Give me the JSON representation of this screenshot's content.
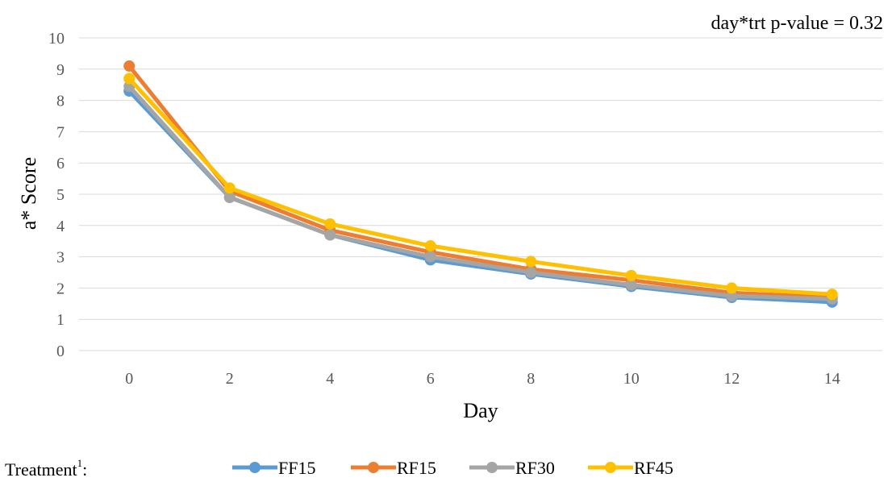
{
  "chart_data": {
    "type": "line",
    "title": "",
    "annotation": "day*trt p-value = 0.32",
    "xlabel": "Day",
    "ylabel": "a* Score",
    "x": [
      0,
      2,
      4,
      6,
      8,
      10,
      12,
      14
    ],
    "ylim": [
      0,
      10
    ],
    "yticks": [
      0,
      1,
      2,
      3,
      4,
      5,
      6,
      7,
      8,
      9,
      10
    ],
    "grid": true,
    "legend_position": "bottom",
    "legend_title": "Treatment",
    "legend_title_superscript": "1",
    "legend_title_suffix": ":",
    "series": [
      {
        "name": "FF15",
        "color": "#5B9BD5",
        "values": [
          8.3,
          4.9,
          3.7,
          2.9,
          2.45,
          2.05,
          1.7,
          1.55
        ]
      },
      {
        "name": "RF15",
        "color": "#ED7D31",
        "values": [
          9.1,
          5.1,
          3.85,
          3.15,
          2.6,
          2.25,
          1.85,
          1.7
        ]
      },
      {
        "name": "RF30",
        "color": "#A5A5A5",
        "values": [
          8.45,
          4.9,
          3.7,
          3.0,
          2.5,
          2.1,
          1.75,
          1.65
        ]
      },
      {
        "name": "RF45",
        "color": "#FFC000",
        "values": [
          8.7,
          5.2,
          4.05,
          3.35,
          2.85,
          2.4,
          2.0,
          1.8
        ]
      }
    ]
  }
}
